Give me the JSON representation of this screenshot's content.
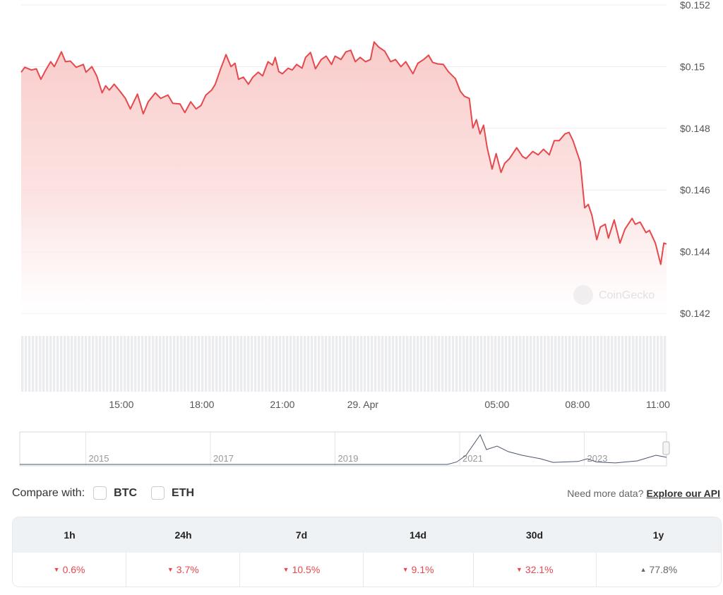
{
  "chart_data": {
    "type": "area",
    "title": "",
    "xlabel": "",
    "ylabel": "",
    "y_axis_side": "right",
    "y_ticks": [
      "$0.152",
      "$0.15",
      "$0.148",
      "$0.146",
      "$0.144",
      "$0.142"
    ],
    "y_tick_values": [
      0.152,
      0.15,
      0.148,
      0.146,
      0.144,
      0.142
    ],
    "ylim": [
      0.142,
      0.152
    ],
    "x_ticks": [
      {
        "label": "15:00",
        "time": "04-28 15:00"
      },
      {
        "label": "18:00",
        "time": "04-28 18:00"
      },
      {
        "label": "21:00",
        "time": "04-28 21:00"
      },
      {
        "label": "29. Apr",
        "time": "04-29 00:00"
      },
      {
        "label": "05:00",
        "time": "04-29 05:00"
      },
      {
        "label": "08:00",
        "time": "04-29 08:00"
      },
      {
        "label": "11:00",
        "time": "04-29 11:00"
      }
    ],
    "xlim": [
      "04-28 11:16",
      "04-29 11:19"
    ],
    "grid": true,
    "line_color": "#e5484d",
    "fill_color": "#f8c9c7",
    "watermark": "CoinGecko",
    "series": [
      {
        "points": [
          [
            "04-28 11:16",
            0.14982
          ],
          [
            "04-28 11:24",
            0.14998
          ],
          [
            "04-28 11:39",
            0.14989
          ],
          [
            "04-28 11:50",
            0.14993
          ],
          [
            "04-28 12:00",
            0.14959
          ],
          [
            "04-28 12:11",
            0.14989
          ],
          [
            "04-28 12:22",
            0.15016
          ],
          [
            "04-28 12:30",
            0.15
          ],
          [
            "04-28 12:46",
            0.15048
          ],
          [
            "04-28 12:55",
            0.15016
          ],
          [
            "04-28 13:06",
            0.15018
          ],
          [
            "04-28 13:19",
            0.14998
          ],
          [
            "04-28 13:35",
            0.15007
          ],
          [
            "04-28 13:41",
            0.14982
          ],
          [
            "04-28 13:54",
            0.15
          ],
          [
            "04-28 14:05",
            0.1497
          ],
          [
            "04-28 14:17",
            0.14915
          ],
          [
            "04-28 14:25",
            0.14938
          ],
          [
            "04-28 14:33",
            0.14924
          ],
          [
            "04-28 14:44",
            0.14943
          ],
          [
            "04-28 14:57",
            0.1492
          ],
          [
            "04-28 15:09",
            0.14897
          ],
          [
            "04-28 15:20",
            0.14863
          ],
          [
            "04-28 15:36",
            0.14911
          ],
          [
            "04-28 15:49",
            0.14847
          ],
          [
            "04-28 16:00",
            0.14886
          ],
          [
            "04-28 16:16",
            0.14915
          ],
          [
            "04-28 16:28",
            0.14897
          ],
          [
            "04-28 16:44",
            0.14908
          ],
          [
            "04-28 16:55",
            0.14881
          ],
          [
            "04-28 17:11",
            0.14879
          ],
          [
            "04-28 17:22",
            0.14851
          ],
          [
            "04-28 17:35",
            0.14886
          ],
          [
            "04-28 17:47",
            0.14863
          ],
          [
            "04-28 17:58",
            0.14874
          ],
          [
            "04-28 18:09",
            0.14908
          ],
          [
            "04-28 18:22",
            0.14924
          ],
          [
            "04-28 18:30",
            0.14943
          ],
          [
            "04-28 18:41",
            0.14989
          ],
          [
            "04-28 18:54",
            0.15039
          ],
          [
            "04-28 19:05",
            0.15
          ],
          [
            "04-28 19:14",
            0.15011
          ],
          [
            "04-28 19:22",
            0.14959
          ],
          [
            "04-28 19:33",
            0.14966
          ],
          [
            "04-28 19:44",
            0.14943
          ],
          [
            "04-28 19:54",
            0.14966
          ],
          [
            "04-28 20:06",
            0.14982
          ],
          [
            "04-28 20:16",
            0.1497
          ],
          [
            "04-28 20:28",
            0.15016
          ],
          [
            "04-28 20:38",
            0.15005
          ],
          [
            "04-28 20:44",
            0.1503
          ],
          [
            "04-28 20:52",
            0.14984
          ],
          [
            "04-28 21:00",
            0.14977
          ],
          [
            "04-28 21:13",
            0.14995
          ],
          [
            "04-28 21:22",
            0.14989
          ],
          [
            "04-28 21:32",
            0.15007
          ],
          [
            "04-28 21:44",
            0.14995
          ],
          [
            "04-28 21:52",
            0.1503
          ],
          [
            "04-28 22:03",
            0.15046
          ],
          [
            "04-28 22:14",
            0.14993
          ],
          [
            "04-28 22:27",
            0.15023
          ],
          [
            "04-28 22:38",
            0.15034
          ],
          [
            "04-28 22:50",
            0.15007
          ],
          [
            "04-28 22:58",
            0.15034
          ],
          [
            "04-28 23:11",
            0.15023
          ],
          [
            "04-28 23:22",
            0.15048
          ],
          [
            "04-28 23:33",
            0.15053
          ],
          [
            "04-28 23:43",
            0.15016
          ],
          [
            "04-28 23:54",
            0.1503
          ],
          [
            "04-29 00:06",
            0.15016
          ],
          [
            "04-29 00:17",
            0.15023
          ],
          [
            "04-29 00:25",
            0.1508
          ],
          [
            "04-29 00:35",
            0.15064
          ],
          [
            "04-29 00:49",
            0.1505
          ],
          [
            "04-29 01:02",
            0.15016
          ],
          [
            "04-29 01:13",
            0.15023
          ],
          [
            "04-29 01:25",
            0.15
          ],
          [
            "04-29 01:36",
            0.15016
          ],
          [
            "04-29 01:52",
            0.14977
          ],
          [
            "04-29 02:03",
            0.15011
          ],
          [
            "04-29 02:16",
            0.15023
          ],
          [
            "04-29 02:27",
            0.15037
          ],
          [
            "04-29 02:36",
            0.15014
          ],
          [
            "04-29 02:47",
            0.15009
          ],
          [
            "04-29 03:00",
            0.15007
          ],
          [
            "04-29 03:11",
            0.14984
          ],
          [
            "04-29 03:27",
            0.14961
          ],
          [
            "04-29 03:38",
            0.1492
          ],
          [
            "04-29 03:47",
            0.14904
          ],
          [
            "04-29 03:58",
            0.14897
          ],
          [
            "04-29 04:06",
            0.14801
          ],
          [
            "04-29 04:14",
            0.14828
          ],
          [
            "04-29 04:22",
            0.14782
          ],
          [
            "04-29 04:30",
            0.1481
          ],
          [
            "04-29 04:38",
            0.14737
          ],
          [
            "04-29 04:49",
            0.14668
          ],
          [
            "04-29 04:58",
            0.14718
          ],
          [
            "04-29 05:09",
            0.14657
          ],
          [
            "04-29 05:17",
            0.14686
          ],
          [
            "04-29 05:28",
            0.14702
          ],
          [
            "04-29 05:44",
            0.14737
          ],
          [
            "04-29 05:57",
            0.14709
          ],
          [
            "04-29 06:05",
            0.14702
          ],
          [
            "04-29 06:20",
            0.14725
          ],
          [
            "04-29 06:32",
            0.14714
          ],
          [
            "04-29 06:44",
            0.14732
          ],
          [
            "04-29 06:57",
            0.14714
          ],
          [
            "04-29 07:08",
            0.1476
          ],
          [
            "04-29 07:19",
            0.1476
          ],
          [
            "04-29 07:32",
            0.14782
          ],
          [
            "04-29 07:41",
            0.14787
          ],
          [
            "04-29 07:50",
            0.1476
          ],
          [
            "04-29 08:06",
            0.14691
          ],
          [
            "04-29 08:16",
            0.14542
          ],
          [
            "04-29 08:24",
            0.14553
          ],
          [
            "04-29 08:32",
            0.14519
          ],
          [
            "04-29 08:43",
            0.14439
          ],
          [
            "04-29 08:51",
            0.1448
          ],
          [
            "04-29 09:02",
            0.14489
          ],
          [
            "04-29 09:09",
            0.14444
          ],
          [
            "04-29 09:22",
            0.14503
          ],
          [
            "04-29 09:35",
            0.14428
          ],
          [
            "04-29 09:46",
            0.14473
          ],
          [
            "04-29 10:02",
            0.14508
          ],
          [
            "04-29 10:09",
            0.14489
          ],
          [
            "04-29 10:20",
            0.14496
          ],
          [
            "04-29 10:33",
            0.14462
          ],
          [
            "04-29 10:41",
            0.14469
          ],
          [
            "04-29 10:54",
            0.14428
          ],
          [
            "04-29 11:06",
            0.14359
          ],
          [
            "04-29 11:13",
            0.14428
          ],
          [
            "04-29 11:19",
            0.14425
          ]
        ]
      }
    ],
    "volume": {
      "shown": true,
      "color": "#e8e9ec"
    },
    "navigator": {
      "year_labels": [
        "2015",
        "2017",
        "2019",
        "2021",
        "2023"
      ],
      "xlim": [
        2013.94,
        2024.32
      ],
      "line_color": "#4a5568",
      "relative_points": [
        [
          2013.94,
          0.0
        ],
        [
          2020.8,
          0.0
        ],
        [
          2020.95,
          0.08
        ],
        [
          2021.1,
          0.3
        ],
        [
          2021.33,
          1.0
        ],
        [
          2021.43,
          0.5
        ],
        [
          2021.6,
          0.62
        ],
        [
          2021.78,
          0.43
        ],
        [
          2022.0,
          0.31
        ],
        [
          2022.3,
          0.19
        ],
        [
          2022.5,
          0.07
        ],
        [
          2022.9,
          0.1
        ],
        [
          2023.05,
          0.19
        ],
        [
          2023.2,
          0.08
        ],
        [
          2023.5,
          0.05
        ],
        [
          2023.85,
          0.12
        ],
        [
          2024.15,
          0.31
        ],
        [
          2024.32,
          0.24
        ]
      ]
    }
  },
  "compare": {
    "label": "Compare with:",
    "options": [
      {
        "label": "BTC",
        "checked": false
      },
      {
        "label": "ETH",
        "checked": false
      }
    ]
  },
  "api": {
    "prompt": "Need more data?",
    "link": "Explore our API"
  },
  "performance": {
    "headers": [
      "1h",
      "24h",
      "7d",
      "14d",
      "30d",
      "1y"
    ],
    "values": [
      {
        "value": "0.6%",
        "direction": "down"
      },
      {
        "value": "3.7%",
        "direction": "down"
      },
      {
        "value": "10.5%",
        "direction": "down"
      },
      {
        "value": "9.1%",
        "direction": "down"
      },
      {
        "value": "32.1%",
        "direction": "down"
      },
      {
        "value": "77.8%",
        "direction": "up"
      }
    ]
  }
}
